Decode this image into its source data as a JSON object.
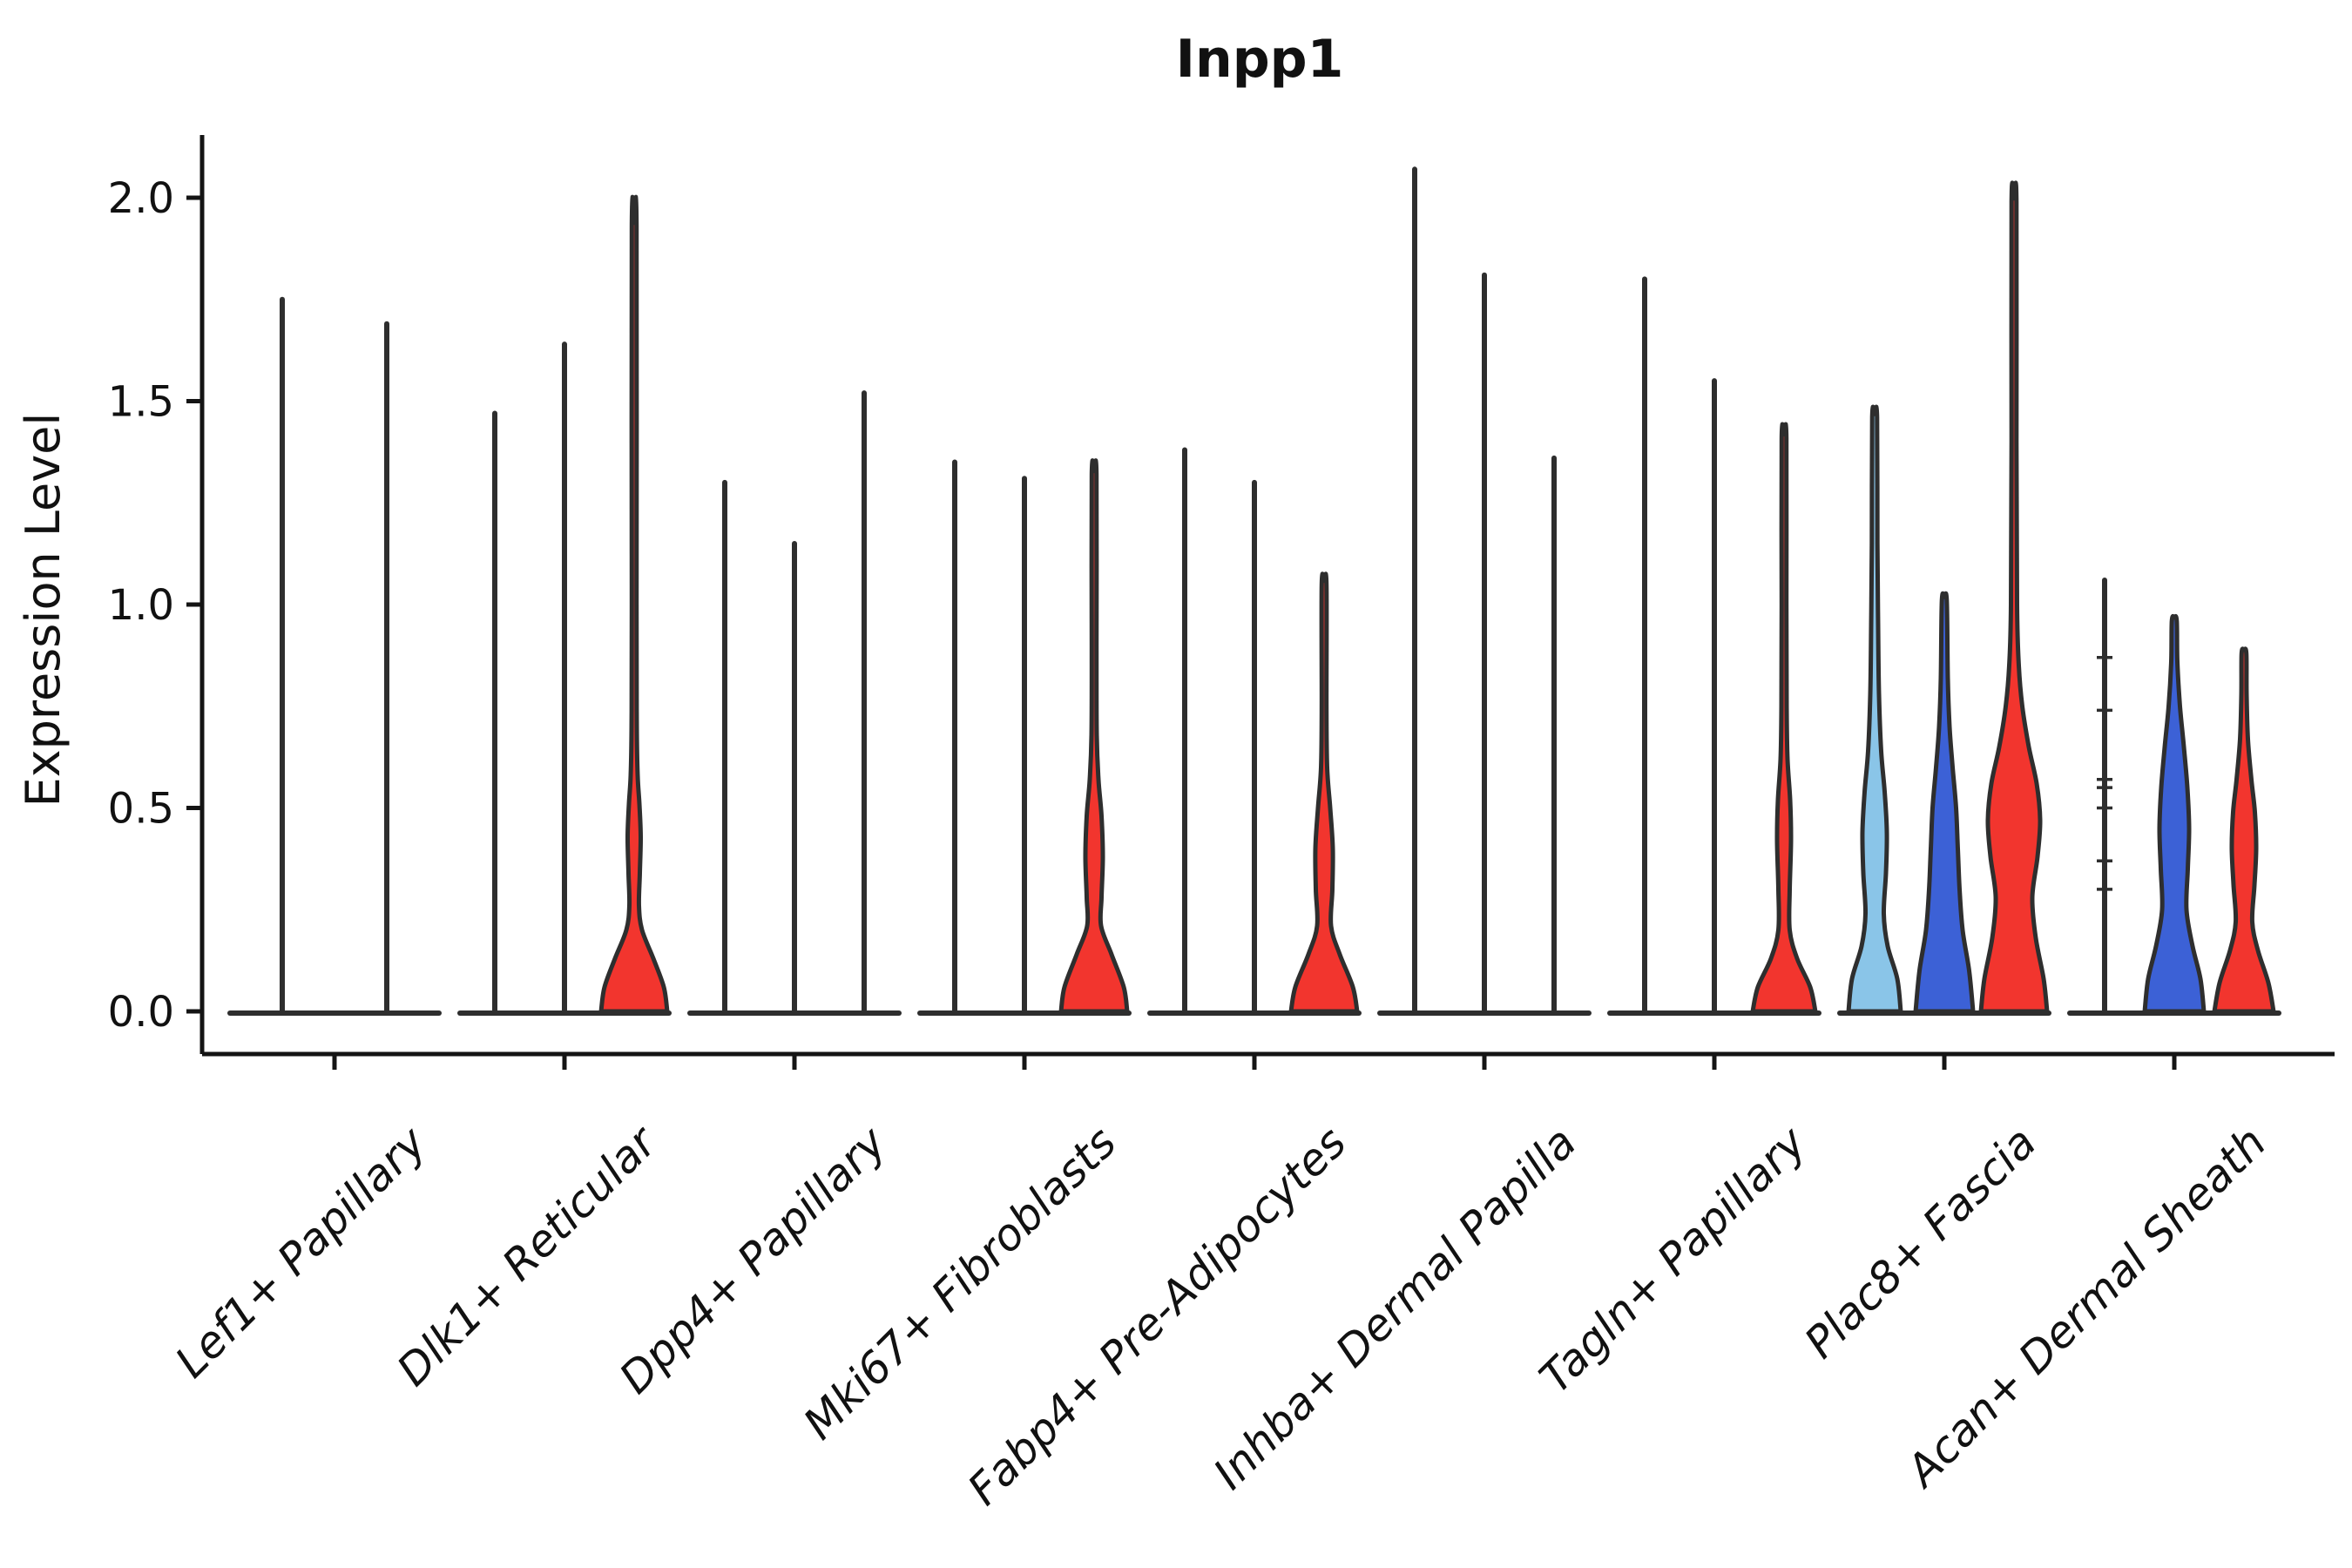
{
  "chart_data": {
    "type": "violin",
    "title": "Inpp1",
    "xlabel": "",
    "ylabel": "Expression Level",
    "yticks": [
      0.0,
      0.5,
      1.0,
      1.5,
      2.0
    ],
    "ylim": [
      0,
      2.16
    ],
    "grid": false,
    "legend": false,
    "palette": {
      "red": "#F2352E",
      "blue": "#3C61D6",
      "lightblue": "#8AC5E8",
      "outline": "#2E2E2E",
      "axis": "#141414"
    },
    "categories": [
      "Lef1+ Papillary",
      "Dlk1+ Reticular",
      "Dpp4+ Papillary",
      "Mki67+ Fibroblasts",
      "Fabp4+ Pre-Adipocytes",
      "Inhba+ Dermal Papilla",
      "Tagln+ Papillary",
      "Plac8+ Fascia",
      "Acan+ Dermal Sheath"
    ],
    "groups": [
      {
        "category": "Lef1+ Papillary",
        "violins": [
          {
            "kind": "line",
            "tip": 1.75
          },
          {
            "kind": "line",
            "tip": 1.69
          }
        ]
      },
      {
        "category": "Dlk1+ Reticular",
        "violins": [
          {
            "kind": "line",
            "tip": 1.47
          },
          {
            "kind": "line",
            "tip": 1.64
          },
          {
            "kind": "violin",
            "color": "red",
            "tip": 1.93,
            "profile": [
              [
                0,
                38
              ],
              [
                0.06,
                34
              ],
              [
                0.13,
                22
              ],
              [
                0.2,
                9
              ],
              [
                0.26,
                5.5
              ],
              [
                0.34,
                6.5
              ],
              [
                0.43,
                7.5
              ],
              [
                0.51,
                6
              ],
              [
                0.58,
                4
              ],
              [
                0.7,
                3
              ],
              [
                1.0,
                2.7
              ],
              [
                1.93,
                2.7
              ]
            ]
          }
        ]
      },
      {
        "category": "Dpp4+ Papillary",
        "violins": [
          {
            "kind": "line",
            "tip": 1.3
          },
          {
            "kind": "line",
            "tip": 1.15
          },
          {
            "kind": "line",
            "tip": 1.52
          }
        ]
      },
      {
        "category": "Mki67+ Fibroblasts",
        "violins": [
          {
            "kind": "line",
            "tip": 1.35
          },
          {
            "kind": "line",
            "tip": 1.31
          },
          {
            "kind": "violin",
            "color": "red",
            "tip": 1.32,
            "profile": [
              [
                0,
                38
              ],
              [
                0.06,
                34
              ],
              [
                0.14,
                20
              ],
              [
                0.21,
                8
              ],
              [
                0.28,
                8.5
              ],
              [
                0.38,
                10
              ],
              [
                0.48,
                8.5
              ],
              [
                0.57,
                5
              ],
              [
                0.68,
                3
              ],
              [
                0.9,
                2.7
              ],
              [
                1.32,
                2.7
              ]
            ]
          }
        ]
      },
      {
        "category": "Fabp4+ Pre-Adipocytes",
        "violins": [
          {
            "kind": "line",
            "tip": 1.38
          },
          {
            "kind": "line",
            "tip": 1.3
          },
          {
            "kind": "violin",
            "color": "red",
            "tip": 1.05,
            "profile": [
              [
                0,
                38
              ],
              [
                0.06,
                33
              ],
              [
                0.14,
                18
              ],
              [
                0.21,
                8
              ],
              [
                0.3,
                9.5
              ],
              [
                0.4,
                10
              ],
              [
                0.5,
                7
              ],
              [
                0.6,
                3.5
              ],
              [
                0.75,
                2.7
              ],
              [
                1.05,
                2.7
              ]
            ]
          }
        ]
      },
      {
        "category": "Inhba+ Dermal Papilla",
        "violins": [
          {
            "kind": "line",
            "tip": 2.07
          },
          {
            "kind": "line",
            "tip": 1.81
          },
          {
            "kind": "line",
            "tip": 1.36
          }
        ]
      },
      {
        "category": "Tagln+ Papillary",
        "violins": [
          {
            "kind": "line",
            "tip": 1.8
          },
          {
            "kind": "line",
            "tip": 1.55
          },
          {
            "kind": "violin",
            "color": "red",
            "tip": 1.41,
            "profile": [
              [
                0,
                36
              ],
              [
                0.06,
                30
              ],
              [
                0.13,
                15
              ],
              [
                0.2,
                6.5
              ],
              [
                0.3,
                6.5
              ],
              [
                0.42,
                8
              ],
              [
                0.52,
                7
              ],
              [
                0.62,
                4
              ],
              [
                0.75,
                3
              ],
              [
                1.0,
                2.7
              ],
              [
                1.41,
                2.7
              ]
            ]
          }
        ]
      },
      {
        "category": "Plac8+ Fascia",
        "violins": [
          {
            "kind": "violin",
            "color": "lightblue",
            "tip": 1.46,
            "profile": [
              [
                0,
                30
              ],
              [
                0.08,
                26
              ],
              [
                0.16,
                15
              ],
              [
                0.24,
                10.5
              ],
              [
                0.34,
                13
              ],
              [
                0.44,
                14
              ],
              [
                0.54,
                11.5
              ],
              [
                0.64,
                7.5
              ],
              [
                0.78,
                5
              ],
              [
                0.95,
                4
              ],
              [
                1.15,
                3.2
              ],
              [
                1.46,
                2.8
              ]
            ]
          },
          {
            "kind": "violin",
            "color": "blue",
            "tip": 1.01,
            "profile": [
              [
                0,
                33
              ],
              [
                0.1,
                28.5
              ],
              [
                0.2,
                21
              ],
              [
                0.3,
                17.5
              ],
              [
                0.4,
                15.5
              ],
              [
                0.5,
                13.5
              ],
              [
                0.6,
                9.5
              ],
              [
                0.7,
                6
              ],
              [
                0.82,
                4
              ],
              [
                1.01,
                2.8
              ]
            ]
          },
          {
            "kind": "violin",
            "color": "red",
            "tip": 1.99,
            "profile": [
              [
                0,
                38
              ],
              [
                0.08,
                34
              ],
              [
                0.18,
                25
              ],
              [
                0.28,
                21
              ],
              [
                0.38,
                27
              ],
              [
                0.47,
                30
              ],
              [
                0.56,
                26
              ],
              [
                0.65,
                17
              ],
              [
                0.75,
                9.5
              ],
              [
                0.85,
                5.5
              ],
              [
                1.0,
                3.5
              ],
              [
                1.4,
                2.8
              ],
              [
                1.99,
                2.8
              ]
            ]
          }
        ]
      },
      {
        "category": "Acan+ Dermal Sheath",
        "violins": [
          {
            "kind": "line",
            "tip": 1.06,
            "rug": [
              0.3,
              0.37,
              0.5,
              0.55,
              0.57,
              0.74,
              0.87
            ]
          },
          {
            "kind": "violin",
            "color": "blue",
            "tip": 0.96,
            "profile": [
              [
                0,
                34
              ],
              [
                0.08,
                30
              ],
              [
                0.16,
                21
              ],
              [
                0.25,
                14
              ],
              [
                0.35,
                15.5
              ],
              [
                0.45,
                17
              ],
              [
                0.55,
                15
              ],
              [
                0.65,
                11
              ],
              [
                0.75,
                6.5
              ],
              [
                0.86,
                3.5
              ],
              [
                0.96,
                2.8
              ]
            ]
          },
          {
            "kind": "violin",
            "color": "red",
            "tip": 0.88,
            "profile": [
              [
                0,
                34
              ],
              [
                0.07,
                28
              ],
              [
                0.15,
                16
              ],
              [
                0.22,
                9.5
              ],
              [
                0.31,
                12
              ],
              [
                0.4,
                14
              ],
              [
                0.49,
                12.5
              ],
              [
                0.57,
                8.5
              ],
              [
                0.67,
                4.5
              ],
              [
                0.78,
                3
              ],
              [
                0.88,
                2.7
              ]
            ]
          }
        ]
      }
    ]
  }
}
